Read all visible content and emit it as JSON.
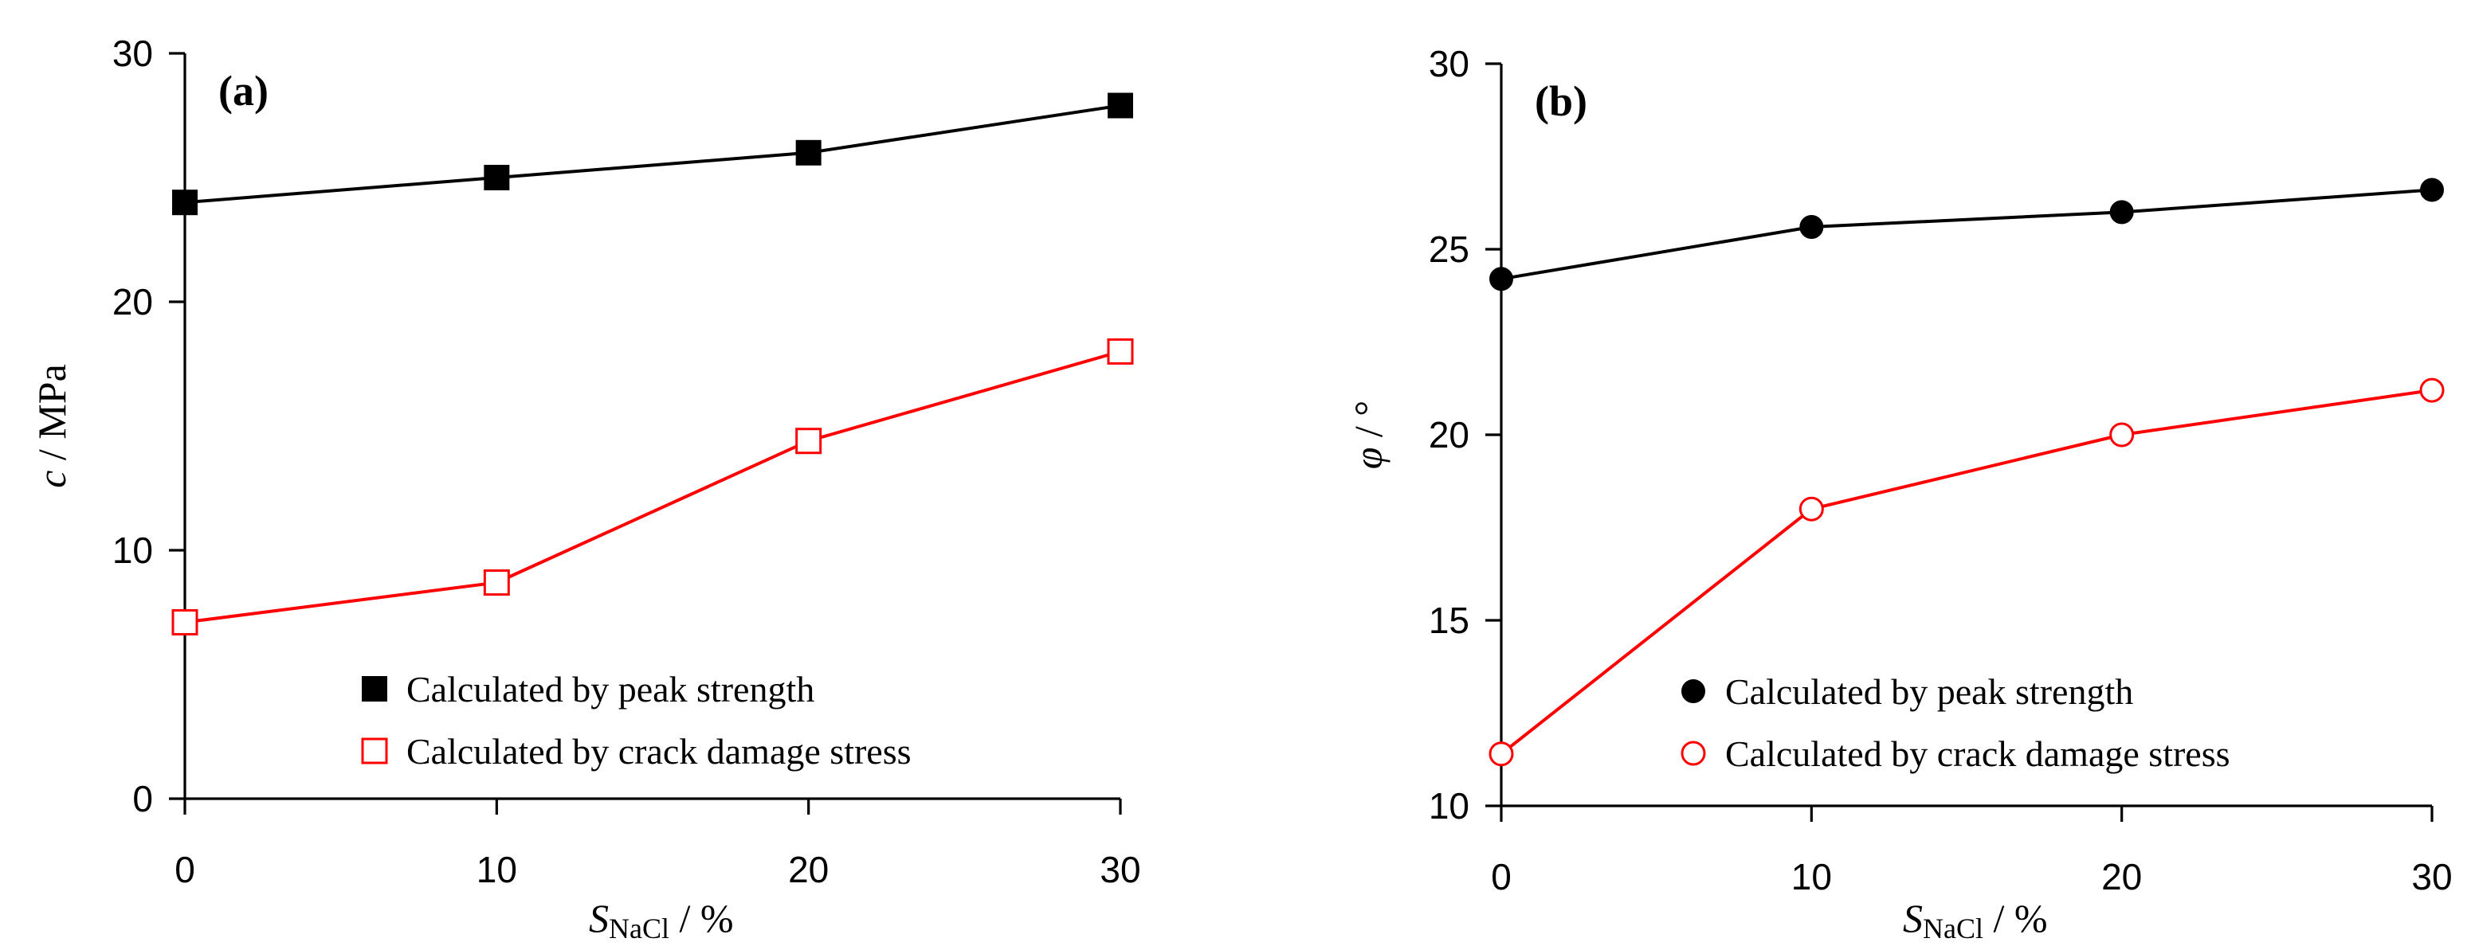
{
  "chart_data": [
    {
      "type": "line",
      "panel_label": "(a)",
      "x": [
        0,
        10,
        20,
        30
      ],
      "xlim": [
        0,
        30
      ],
      "ylim": [
        0,
        30
      ],
      "xticks": [
        "0",
        "10",
        "20",
        "30"
      ],
      "yticks": [
        "0",
        "10",
        "20",
        "30"
      ],
      "xlabel": {
        "main": "S",
        "sub": "NaCl",
        "rest": " / %"
      },
      "ylabel": {
        "var": "c",
        "rest": " / MPa"
      },
      "legend_position": "bottom-right",
      "series": [
        {
          "name": "Calculated by peak strength",
          "values": [
            24.0,
            25.0,
            26.0,
            27.9
          ],
          "color": "#000000",
          "marker": "square-filled"
        },
        {
          "name": "Calculated by crack damage stress",
          "values": [
            7.1,
            8.7,
            14.4,
            18.0
          ],
          "color": "#ff0000",
          "marker": "square-open"
        }
      ]
    },
    {
      "type": "line",
      "panel_label": "(b)",
      "x": [
        0,
        10,
        20,
        30
      ],
      "xlim": [
        0,
        30
      ],
      "ylim": [
        10,
        30
      ],
      "xticks": [
        "0",
        "10",
        "20",
        "30"
      ],
      "yticks": [
        "10",
        "15",
        "20",
        "25",
        "30"
      ],
      "xlabel": {
        "main": "S",
        "sub": "NaCl",
        "rest": " / %"
      },
      "ylabel": {
        "var": "φ",
        "rest": " / °"
      },
      "legend_position": "bottom-right",
      "series": [
        {
          "name": "Calculated by peak strength",
          "values": [
            24.2,
            25.6,
            26.0,
            26.6
          ],
          "color": "#000000",
          "marker": "circle-filled"
        },
        {
          "name": "Calculated by crack damage stress",
          "values": [
            11.4,
            18.0,
            20.0,
            21.2
          ],
          "color": "#ff0000",
          "marker": "circle-open"
        }
      ]
    }
  ]
}
